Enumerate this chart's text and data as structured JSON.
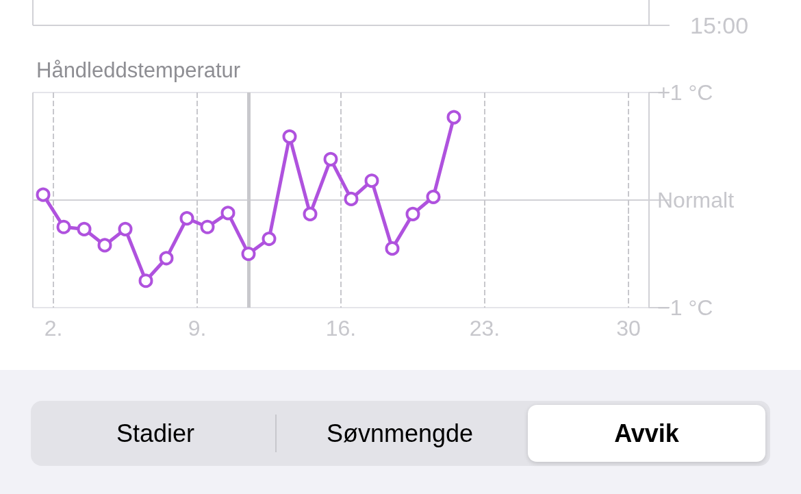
{
  "chart_data": {
    "type": "line",
    "title": "Håndleddstemperatur",
    "x": [
      1.5,
      2.5,
      3.5,
      4.5,
      5.5,
      6.5,
      7.5,
      8.5,
      9.5,
      10.5,
      11.5,
      12.5,
      13.5,
      14.5,
      15.5,
      16.5,
      17.5,
      18.5,
      19.5,
      20.5,
      21.5
    ],
    "series": [
      {
        "color": "#af52de",
        "values": [
          0.05,
          -0.25,
          -0.27,
          -0.42,
          -0.27,
          -0.75,
          -0.54,
          -0.17,
          -0.25,
          -0.12,
          -0.5,
          -0.36,
          0.59,
          -0.13,
          0.38,
          0.01,
          0.18,
          -0.45,
          -0.13,
          0.03,
          0.77
        ]
      }
    ],
    "xlim": [
      1,
      31
    ],
    "xticks": [
      {
        "value": 2,
        "label": "2."
      },
      {
        "value": 9,
        "label": "9."
      },
      {
        "value": 16,
        "label": "16."
      },
      {
        "value": 23,
        "label": "23."
      },
      30
    ],
    "ylim": [
      -1,
      1
    ],
    "yticks": [
      {
        "value": -1,
        "label": "−1 °C"
      },
      {
        "value": 0,
        "label": "Normalt"
      },
      {
        "value": 1,
        "label": "+1 °C"
      }
    ],
    "ref_lines": [
      {
        "axis": "x",
        "value": 11.5,
        "label": null,
        "color": "#c8c8cc"
      }
    ],
    "grid": true,
    "marker": "circle",
    "line_style": "solid",
    "annotations": [
      "15:00",
      "Stadier",
      "Søvnmengde",
      "Avvik"
    ]
  }
}
